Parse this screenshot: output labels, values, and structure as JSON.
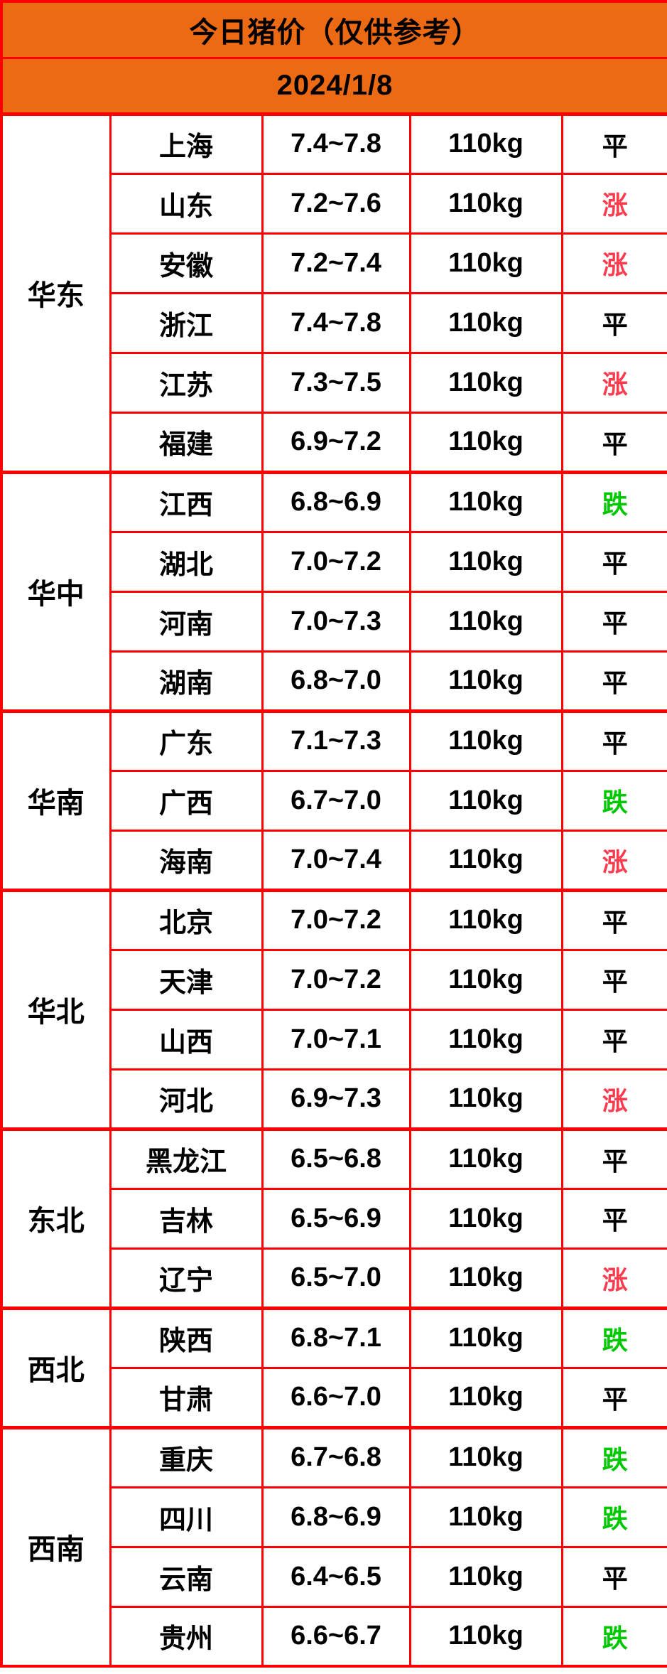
{
  "header": {
    "title": "今日猪价（仅供参考）",
    "date": "2024/1/8"
  },
  "colors": {
    "header_bg": "#EC6A13",
    "border": "#FF0000",
    "up": "#FA3C4E",
    "down": "#00C800",
    "flat": "#000000",
    "cell_bg": "#FFFFFF"
  },
  "status_legend": {
    "up_label": "涨",
    "down_label": "跌",
    "flat_label": "平"
  },
  "regions": [
    {
      "name": "华东",
      "rows": [
        {
          "province": "上海",
          "price": "7.4~7.8",
          "weight": "110kg",
          "status": "平"
        },
        {
          "province": "山东",
          "price": "7.2~7.6",
          "weight": "110kg",
          "status": "涨"
        },
        {
          "province": "安徽",
          "price": "7.2~7.4",
          "weight": "110kg",
          "status": "涨"
        },
        {
          "province": "浙江",
          "price": "7.4~7.8",
          "weight": "110kg",
          "status": "平"
        },
        {
          "province": "江苏",
          "price": "7.3~7.5",
          "weight": "110kg",
          "status": "涨"
        },
        {
          "province": "福建",
          "price": "6.9~7.2",
          "weight": "110kg",
          "status": "平"
        }
      ]
    },
    {
      "name": "华中",
      "rows": [
        {
          "province": "江西",
          "price": "6.8~6.9",
          "weight": "110kg",
          "status": "跌"
        },
        {
          "province": "湖北",
          "price": "7.0~7.2",
          "weight": "110kg",
          "status": "平"
        },
        {
          "province": "河南",
          "price": "7.0~7.3",
          "weight": "110kg",
          "status": "平"
        },
        {
          "province": "湖南",
          "price": "6.8~7.0",
          "weight": "110kg",
          "status": "平"
        }
      ]
    },
    {
      "name": "华南",
      "rows": [
        {
          "province": "广东",
          "price": "7.1~7.3",
          "weight": "110kg",
          "status": "平"
        },
        {
          "province": "广西",
          "price": "6.7~7.0",
          "weight": "110kg",
          "status": "跌"
        },
        {
          "province": "海南",
          "price": "7.0~7.4",
          "weight": "110kg",
          "status": "涨"
        }
      ]
    },
    {
      "name": "华北",
      "rows": [
        {
          "province": "北京",
          "price": "7.0~7.2",
          "weight": "110kg",
          "status": "平"
        },
        {
          "province": "天津",
          "price": "7.0~7.2",
          "weight": "110kg",
          "status": "平"
        },
        {
          "province": "山西",
          "price": "7.0~7.1",
          "weight": "110kg",
          "status": "平"
        },
        {
          "province": "河北",
          "price": "6.9~7.3",
          "weight": "110kg",
          "status": "涨"
        }
      ]
    },
    {
      "name": "东北",
      "rows": [
        {
          "province": "黑龙江",
          "price": "6.5~6.8",
          "weight": "110kg",
          "status": "平"
        },
        {
          "province": "吉林",
          "price": "6.5~6.9",
          "weight": "110kg",
          "status": "平"
        },
        {
          "province": "辽宁",
          "price": "6.5~7.0",
          "weight": "110kg",
          "status": "涨"
        }
      ]
    },
    {
      "name": "西北",
      "rows": [
        {
          "province": "陕西",
          "price": "6.8~7.1",
          "weight": "110kg",
          "status": "跌"
        },
        {
          "province": "甘肃",
          "price": "6.6~7.0",
          "weight": "110kg",
          "status": "平"
        }
      ]
    },
    {
      "name": "西南",
      "rows": [
        {
          "province": "重庆",
          "price": "6.7~6.8",
          "weight": "110kg",
          "status": "跌"
        },
        {
          "province": "四川",
          "price": "6.8~6.9",
          "weight": "110kg",
          "status": "跌"
        },
        {
          "province": "云南",
          "price": "6.4~6.5",
          "weight": "110kg",
          "status": "平"
        },
        {
          "province": "贵州",
          "price": "6.6~6.7",
          "weight": "110kg",
          "status": "跌"
        }
      ]
    }
  ]
}
